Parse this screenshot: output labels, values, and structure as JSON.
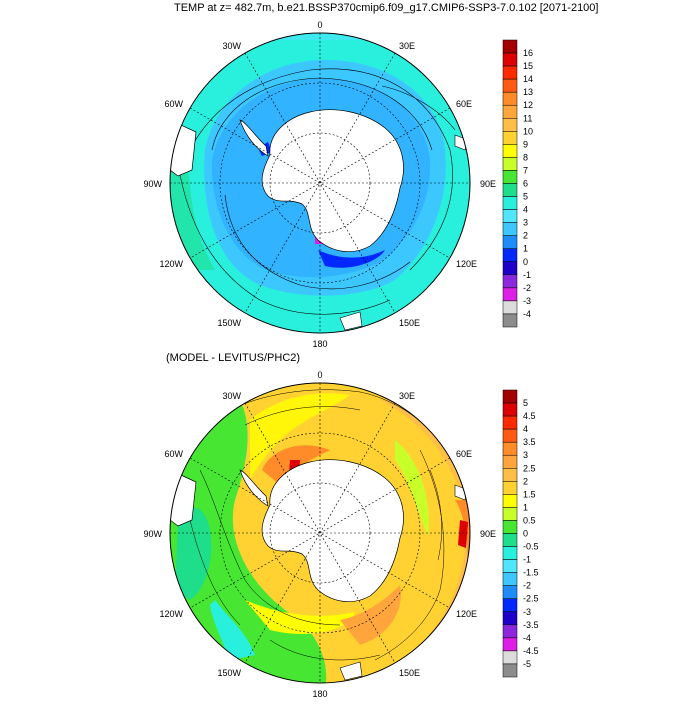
{
  "top_panel": {
    "title": "TEMP at z= 482.7m, b.e21.BSSP370cmip6.f09_g17.CMIP6-SSP3-7.0.102 [2071-2100]",
    "colorbar": {
      "labels": [
        "16",
        "15",
        "14",
        "13",
        "12",
        "11",
        "10",
        "9",
        "8",
        "7",
        "6",
        "5",
        "4",
        "3",
        "2",
        "1",
        "0",
        "-1",
        "-2",
        "-3",
        "-4"
      ],
      "colors": [
        "#a50000",
        "#dc0000",
        "#ff2a00",
        "#ff5a14",
        "#ff8c28",
        "#ffa53c",
        "#ffbf46",
        "#ffd232",
        "#ffff00",
        "#c8ff28",
        "#46e632",
        "#1ede8c",
        "#28f0dc",
        "#50e6ff",
        "#3cc8ff",
        "#1e8cff",
        "#0028ff",
        "#1e00c8",
        "#8c28dc",
        "#dc1ee6",
        "#dcdcdc",
        "#8c8c8c"
      ]
    },
    "map_labels": {
      "lat_0": "0",
      "lon_30e": "30E",
      "lon_60e": "60E",
      "lon_90e": "90E",
      "lon_120e": "120E",
      "lon_150e": "150E",
      "lon_180": "180",
      "lon_150w": "150W",
      "lon_120w": "120W",
      "lon_90w": "90W",
      "lon_60w": "60W",
      "lon_30w": "30W"
    }
  },
  "bottom_panel": {
    "title": "(MODEL - LEVITUS/PHC2)",
    "colorbar": {
      "labels": [
        "5",
        "4.5",
        "4",
        "3.5",
        "3",
        "2.5",
        "2",
        "1.5",
        "1",
        "0.5",
        "0",
        "-0.5",
        "-1",
        "-1.5",
        "-2",
        "-2.5",
        "-3",
        "-3.5",
        "-4",
        "-4.5",
        "-5"
      ],
      "colors": [
        "#a50000",
        "#dc0000",
        "#ff2a00",
        "#ff5a14",
        "#ff8c28",
        "#ffa53c",
        "#ffbf46",
        "#ffd232",
        "#ffff00",
        "#c8ff28",
        "#46e632",
        "#1ede8c",
        "#28f0dc",
        "#50e6ff",
        "#3cc8ff",
        "#1e8cff",
        "#0028ff",
        "#1e00c8",
        "#8c28dc",
        "#dc1ee6",
        "#dcdcdc",
        "#8c8c8c"
      ]
    },
    "map_labels": {
      "lat_0": "0",
      "lon_30e": "30E",
      "lon_60e": "60E",
      "lon_90e": "90E",
      "lon_120e": "120E",
      "lon_150e": "150E",
      "lon_180": "180",
      "lon_150w": "150W",
      "lon_120w": "120W",
      "lon_90w": "90W",
      "lon_60w": "60W",
      "lon_30w": "30W"
    }
  }
}
